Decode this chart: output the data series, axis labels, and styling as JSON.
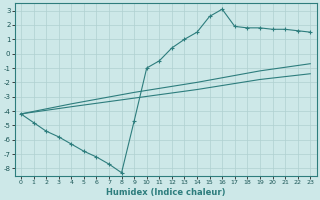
{
  "xlabel": "Humidex (Indice chaleur)",
  "xlim": [
    -0.5,
    23.5
  ],
  "ylim": [
    -8.5,
    3.5
  ],
  "yticks": [
    3,
    2,
    1,
    0,
    -1,
    -2,
    -3,
    -4,
    -5,
    -6,
    -7,
    -8
  ],
  "xticks": [
    0,
    1,
    2,
    3,
    4,
    5,
    6,
    7,
    8,
    9,
    10,
    11,
    12,
    13,
    14,
    15,
    16,
    17,
    18,
    19,
    20,
    21,
    22,
    23
  ],
  "bg_color": "#cde8e8",
  "grid_color": "#b0d0d0",
  "line_color": "#2d7d7d",
  "line1_x": [
    0,
    1,
    2,
    3,
    4,
    5,
    6,
    7,
    8,
    9,
    10,
    11,
    12,
    13,
    14,
    15,
    16,
    17,
    18,
    19,
    20,
    21,
    22,
    23
  ],
  "line1_y": [
    -4.2,
    -4.8,
    -5.4,
    -5.8,
    -6.3,
    -6.8,
    -7.2,
    -7.7,
    -8.3,
    -4.7,
    -1.0,
    -0.5,
    0.4,
    1.0,
    1.5,
    2.6,
    3.1,
    1.9,
    1.8,
    1.8,
    1.7,
    1.7,
    1.6,
    1.5
  ],
  "line2_x": [
    0,
    4,
    9,
    14,
    19,
    23
  ],
  "line2_y": [
    -4.2,
    -3.5,
    -2.7,
    -2.0,
    -1.2,
    -0.7
  ],
  "line3_x": [
    0,
    4,
    9,
    14,
    19,
    23
  ],
  "line3_y": [
    -4.2,
    -3.7,
    -3.1,
    -2.5,
    -1.8,
    -1.4
  ]
}
